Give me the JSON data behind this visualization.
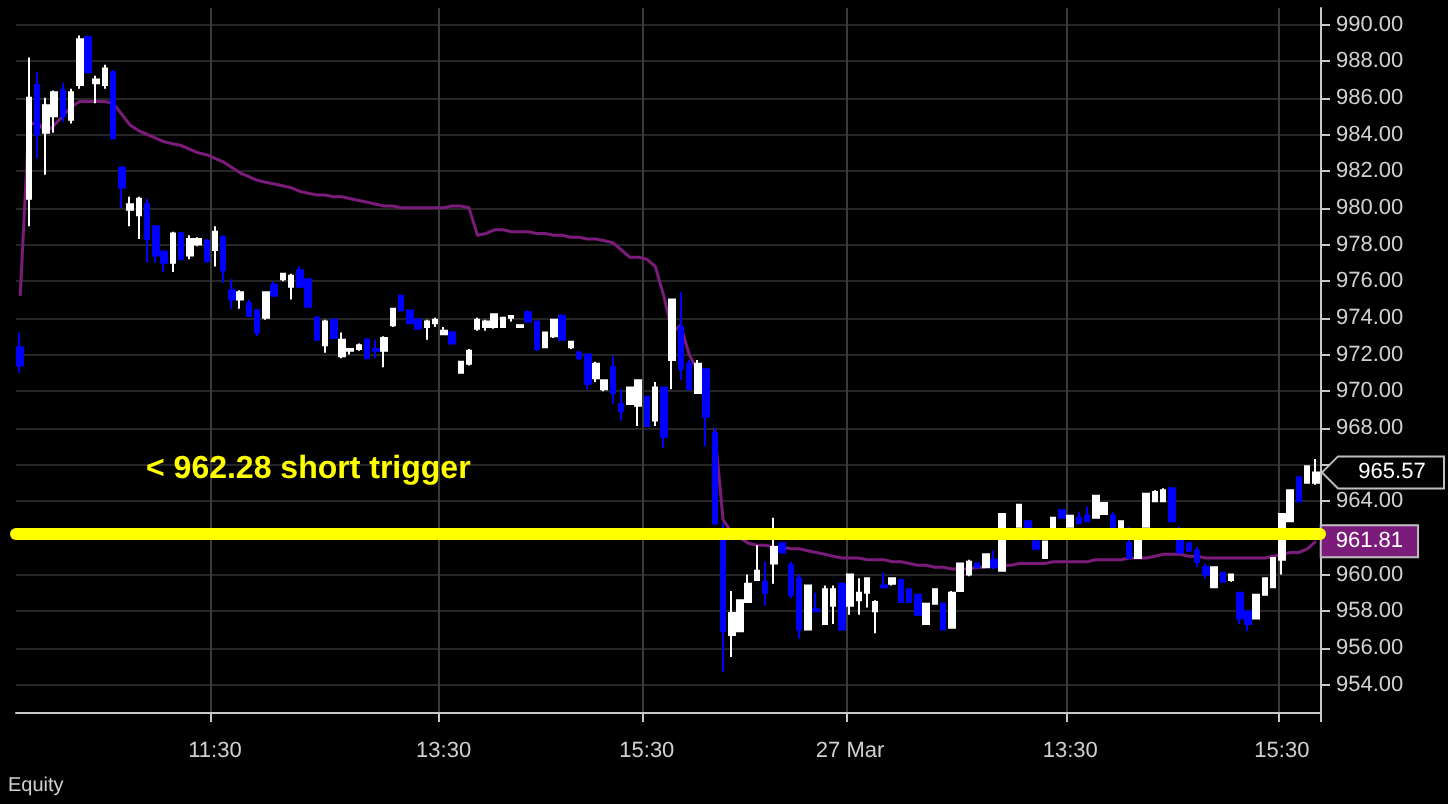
{
  "chart_data": {
    "type": "candlestick",
    "categories": [
      null,
      null,
      null,
      null,
      null,
      null,
      null,
      null,
      null,
      null,
      null,
      null,
      null,
      null,
      null,
      null,
      null,
      null,
      null,
      null,
      null,
      null,
      null,
      "11:30",
      null,
      null,
      null,
      null,
      null,
      null,
      null,
      null,
      null,
      null,
      null,
      null,
      null,
      null,
      null,
      null,
      null,
      null,
      null,
      null,
      null,
      null,
      null,
      null,
      null,
      null,
      "13:30",
      null,
      null,
      null,
      null,
      null,
      null,
      null,
      null,
      null,
      null,
      null,
      null,
      null,
      null,
      null,
      null,
      null,
      null,
      null,
      null,
      null,
      null,
      null,
      "15:30",
      null,
      null,
      null,
      null,
      null,
      null,
      null,
      null,
      null,
      null,
      null,
      null,
      null,
      null,
      null,
      null,
      null,
      null,
      null,
      null,
      null,
      null,
      null,
      "27 Mar",
      null,
      null,
      null,
      null,
      null,
      null,
      null,
      null,
      null,
      null,
      null,
      null,
      null,
      null,
      null,
      null,
      null,
      null,
      null,
      null,
      null,
      null,
      null,
      null,
      null,
      "13:30",
      null,
      null,
      null,
      null,
      null,
      null,
      null,
      null,
      null,
      null,
      null,
      null,
      null,
      null,
      null,
      null,
      null,
      null,
      null,
      null,
      null,
      null,
      null,
      null,
      "15:30",
      null,
      null,
      null,
      null
    ],
    "ohlc": [
      [
        972.4,
        973.2,
        971.0,
        971.4
      ],
      [
        980.5,
        988.2,
        979.0,
        986.0
      ],
      [
        986.7,
        987.4,
        982.7,
        984.0
      ],
      [
        984.1,
        986.0,
        981.8,
        985.6
      ],
      [
        985.0,
        986.4,
        984.1,
        986.3
      ],
      [
        986.4,
        986.8,
        984.7,
        985.0
      ],
      [
        984.8,
        986.5,
        984.6,
        986.3
      ],
      [
        986.7,
        989.4,
        986.5,
        989.2
      ],
      [
        989.3,
        989.4,
        987.4,
        987.4
      ],
      [
        986.8,
        987.2,
        985.7,
        987.0
      ],
      [
        986.7,
        987.8,
        986.5,
        987.6
      ],
      [
        987.4,
        987.5,
        983.8,
        983.8
      ],
      [
        982.2,
        982.2,
        980.0,
        981.1
      ],
      [
        979.9,
        980.6,
        979.0,
        980.2
      ],
      [
        979.6,
        980.6,
        978.3,
        980.5
      ],
      [
        980.2,
        980.5,
        977.0,
        978.3
      ],
      [
        979.0,
        979.0,
        977.0,
        977.4
      ],
      [
        977.6,
        977.7,
        976.5,
        977.0
      ],
      [
        977.0,
        978.7,
        976.5,
        978.6
      ],
      [
        978.6,
        978.7,
        977.2,
        977.2
      ],
      [
        977.4,
        978.5,
        977.2,
        978.3
      ],
      [
        978.0,
        978.4,
        977.9,
        978.3
      ],
      [
        978.2,
        978.3,
        977.0,
        977.1
      ],
      [
        977.7,
        979.0,
        976.8,
        978.7
      ],
      [
        978.4,
        978.5,
        975.9,
        976.6
      ],
      [
        975.5,
        976.1,
        974.5,
        975.0
      ],
      [
        975.0,
        975.5,
        974.5,
        975.4
      ],
      [
        974.8,
        975.0,
        974.1,
        974.1
      ],
      [
        974.4,
        974.5,
        973.0,
        973.2
      ],
      [
        974.0,
        975.4,
        973.9,
        975.4
      ],
      [
        975.8,
        976.0,
        975.2,
        975.2
      ],
      [
        976.1,
        976.4,
        976.0,
        976.4
      ],
      [
        975.7,
        976.4,
        975.0,
        976.3
      ],
      [
        976.6,
        976.8,
        975.7,
        975.7
      ],
      [
        976.1,
        976.1,
        974.6,
        974.6
      ],
      [
        974.0,
        974.1,
        972.8,
        972.8
      ],
      [
        972.5,
        973.9,
        972.1,
        973.8
      ],
      [
        973.9,
        973.9,
        972.9,
        972.9
      ],
      [
        971.9,
        973.2,
        971.8,
        972.8
      ],
      [
        972.2,
        972.3,
        972.0,
        972.3
      ],
      [
        972.3,
        972.6,
        972.2,
        972.5
      ],
      [
        972.8,
        972.9,
        971.8,
        971.8
      ],
      [
        972.3,
        972.8,
        971.8,
        972.2
      ],
      [
        972.2,
        973.0,
        971.3,
        972.9
      ],
      [
        973.6,
        974.5,
        973.5,
        974.5
      ],
      [
        975.2,
        975.2,
        974.4,
        974.4
      ],
      [
        974.4,
        974.4,
        973.7,
        973.7
      ],
      [
        973.9,
        974.0,
        973.4,
        973.4
      ],
      [
        973.5,
        973.9,
        972.8,
        973.8
      ],
      [
        973.7,
        974.0,
        973.5,
        973.9
      ],
      [
        973.1,
        973.5,
        973.1,
        973.3
      ],
      [
        973.2,
        973.3,
        972.6,
        972.6
      ],
      [
        971.0,
        971.6,
        971.0,
        971.6
      ],
      [
        971.5,
        972.3,
        971.4,
        972.2
      ],
      [
        973.4,
        974.0,
        973.3,
        973.9
      ],
      [
        973.5,
        973.9,
        973.3,
        973.8
      ],
      [
        973.5,
        974.2,
        973.4,
        974.2
      ],
      [
        973.5,
        974.0,
        973.5,
        974.0
      ],
      [
        974.0,
        974.1,
        973.8,
        974.1
      ],
      [
        973.5,
        973.6,
        973.5,
        973.6
      ],
      [
        974.3,
        974.4,
        973.8,
        973.8
      ],
      [
        973.8,
        973.8,
        972.2,
        972.3
      ],
      [
        972.4,
        973.2,
        972.4,
        973.2
      ],
      [
        973.0,
        973.9,
        972.9,
        973.9
      ],
      [
        974.1,
        974.2,
        972.8,
        972.8
      ],
      [
        972.4,
        972.7,
        972.3,
        972.7
      ],
      [
        972.1,
        972.2,
        971.7,
        971.8
      ],
      [
        972.0,
        972.0,
        970.1,
        970.4
      ],
      [
        970.7,
        971.6,
        970.5,
        971.5
      ],
      [
        970.1,
        970.6,
        970.0,
        970.6
      ],
      [
        971.3,
        971.9,
        969.3,
        969.9
      ],
      [
        969.3,
        970.1,
        968.4,
        968.9
      ],
      [
        969.3,
        970.2,
        969.3,
        970.2
      ],
      [
        969.2,
        970.6,
        968.1,
        970.6
      ],
      [
        969.7,
        969.7,
        968.1,
        968.1
      ],
      [
        968.4,
        970.5,
        968.1,
        970.2
      ],
      [
        970.2,
        970.2,
        966.9,
        967.5
      ],
      [
        971.7,
        975.0,
        970.1,
        975.0
      ],
      [
        973.5,
        975.4,
        970.6,
        971.2
      ],
      [
        971.5,
        971.7,
        970.1,
        970.1
      ],
      [
        969.9,
        971.7,
        969.9,
        971.5
      ],
      [
        971.2,
        971.2,
        967.0,
        968.6
      ],
      [
        967.7,
        968.0,
        962.7,
        962.8
      ],
      [
        962.2,
        962.8,
        954.7,
        956.9
      ],
      [
        956.7,
        959.1,
        955.5,
        957.9
      ],
      [
        956.9,
        958.6,
        956.9,
        958.6
      ],
      [
        958.5,
        960.0,
        958.5,
        959.5
      ],
      [
        959.7,
        961.6,
        959.7,
        960.2
      ],
      [
        959.6,
        960.7,
        958.3,
        959.0
      ],
      [
        960.6,
        963.1,
        959.5,
        961.5
      ],
      [
        961.7,
        961.7,
        961.2,
        961.2
      ],
      [
        960.5,
        960.7,
        958.7,
        958.9
      ],
      [
        959.8,
        960.0,
        956.5,
        957.0
      ],
      [
        957.0,
        959.4,
        957.0,
        959.4
      ],
      [
        958.1,
        959.0,
        958.0,
        958.0
      ],
      [
        957.3,
        959.4,
        957.3,
        959.2
      ],
      [
        958.3,
        959.4,
        957.3,
        959.2
      ],
      [
        959.5,
        959.5,
        957.0,
        957.0
      ],
      [
        958.3,
        960.0,
        957.8,
        960.0
      ],
      [
        958.6,
        959.8,
        957.8,
        959.0
      ],
      [
        959.0,
        959.8,
        958.2,
        959.8
      ],
      [
        958.0,
        958.6,
        956.8,
        958.5
      ],
      [
        959.4,
        960.1,
        959.3,
        959.3
      ],
      [
        959.5,
        959.8,
        959.4,
        959.8
      ],
      [
        959.7,
        959.7,
        958.5,
        958.5
      ],
      [
        959.2,
        959.2,
        958.5,
        958.5
      ],
      [
        958.9,
        958.9,
        957.8,
        957.8
      ],
      [
        957.3,
        958.4,
        957.3,
        958.4
      ],
      [
        958.4,
        959.2,
        958.4,
        959.2
      ],
      [
        958.4,
        958.4,
        957.0,
        957.0
      ],
      [
        957.1,
        959.1,
        957.1,
        959.0
      ],
      [
        959.1,
        960.6,
        959.1,
        960.6
      ],
      [
        960.0,
        960.8,
        959.9,
        960.7
      ],
      [
        960.6,
        960.6,
        960.4,
        960.4
      ],
      [
        960.4,
        961.1,
        960.4,
        961.1
      ],
      [
        960.8,
        961.3,
        960.3,
        960.4
      ],
      [
        960.2,
        963.3,
        960.2,
        963.3
      ],
      null,
      [
        962.6,
        963.8,
        962.6,
        963.8
      ],
      [
        962.9,
        962.9,
        962.4,
        962.4
      ],
      [
        961.8,
        961.9,
        961.4,
        961.4
      ],
      [
        960.9,
        961.8,
        960.9,
        961.8
      ],
      [
        962.4,
        963.1,
        962.4,
        963.1
      ],
      [
        963.5,
        963.5,
        963.1,
        963.1
      ],
      [
        962.6,
        963.2,
        962.6,
        963.2
      ],
      [
        963.1,
        963.4,
        962.8,
        962.8
      ],
      [
        963.2,
        963.7,
        962.9,
        962.9
      ],
      [
        963.1,
        964.3,
        963.1,
        964.3
      ],
      [
        963.3,
        963.9,
        963.3,
        963.9
      ],
      [
        963.2,
        963.4,
        962.6,
        962.6
      ],
      [
        962.4,
        962.9,
        962.4,
        962.9
      ],
      [
        961.7,
        962.6,
        960.9,
        960.9
      ],
      [
        960.9,
        962.2,
        960.9,
        962.2
      ],
      [
        962.6,
        964.4,
        962.6,
        964.4
      ],
      [
        964.0,
        964.6,
        964.0,
        964.5
      ],
      [
        964.0,
        964.7,
        964.0,
        964.6
      ],
      [
        964.7,
        964.7,
        962.9,
        962.9
      ],
      [
        962.0,
        962.6,
        961.2,
        961.2
      ],
      [
        961.7,
        961.7,
        961.3,
        961.3
      ],
      [
        961.3,
        961.5,
        960.4,
        960.7
      ],
      [
        960.4,
        960.6,
        959.8,
        960.0
      ],
      [
        959.3,
        960.4,
        959.3,
        960.4
      ],
      [
        960.1,
        960.1,
        959.6,
        959.6
      ],
      [
        959.7,
        960.0,
        959.6,
        960.0
      ],
      [
        959.0,
        959.0,
        957.3,
        957.6
      ],
      [
        958.0,
        958.0,
        956.9,
        957.3
      ],
      [
        957.6,
        958.9,
        957.6,
        958.9
      ],
      [
        958.9,
        959.8,
        958.9,
        959.8
      ],
      [
        959.3,
        960.9,
        959.3,
        960.9
      ],
      [
        960.8,
        963.3,
        960.0,
        963.3
      ],
      [
        962.9,
        964.6,
        962.9,
        964.6
      ],
      [
        965.3,
        965.3,
        964.0,
        964.0
      ],
      [
        965.0,
        965.9,
        965.0,
        965.9
      ],
      [
        965.0,
        966.3,
        964.9,
        965.57
      ]
    ],
    "colors": [
      "#0000ff",
      "#ffffff",
      "#0000ff",
      "#ffffff",
      "#ffffff",
      "#0000ff",
      "#ffffff",
      "#ffffff",
      "#0000ff",
      "#ffffff",
      "#ffffff",
      "#0000ff",
      "#0000ff",
      "#ffffff",
      "#ffffff",
      "#0000ff",
      "#0000ff",
      "#0000ff",
      "#ffffff",
      "#0000ff",
      "#ffffff",
      "#ffffff",
      "#0000ff",
      "#ffffff",
      "#0000ff",
      "#0000ff",
      "#ffffff",
      "#0000ff",
      "#0000ff",
      "#ffffff",
      "#0000ff",
      "#ffffff",
      "#ffffff",
      "#0000ff",
      "#0000ff",
      "#0000ff",
      "#ffffff",
      "#0000ff",
      "#ffffff",
      "#ffffff",
      "#ffffff",
      "#0000ff",
      "#0000ff",
      "#ffffff",
      "#ffffff",
      "#0000ff",
      "#0000ff",
      "#0000ff",
      "#ffffff",
      "#ffffff",
      "#ffffff",
      "#0000ff",
      "#ffffff",
      "#ffffff",
      "#ffffff",
      "#ffffff",
      "#ffffff",
      "#ffffff",
      "#ffffff",
      "#ffffff",
      "#0000ff",
      "#0000ff",
      "#ffffff",
      "#ffffff",
      "#0000ff",
      "#ffffff",
      "#0000ff",
      "#0000ff",
      "#ffffff",
      "#ffffff",
      "#0000ff",
      "#0000ff",
      "#ffffff",
      "#ffffff",
      "#0000ff",
      "#ffffff",
      "#0000ff",
      "#ffffff",
      "#0000ff",
      "#0000ff",
      "#ffffff",
      "#0000ff",
      "#0000ff",
      "#0000ff",
      "#ffffff",
      "#ffffff",
      "#ffffff",
      "#ffffff",
      "#0000ff",
      "#ffffff",
      "#0000ff",
      "#0000ff",
      "#0000ff",
      "#ffffff",
      "#0000ff",
      "#ffffff",
      "#ffffff",
      "#0000ff",
      "#ffffff",
      "#ffffff",
      "#ffffff",
      "#ffffff",
      "#0000ff",
      "#ffffff",
      "#0000ff",
      "#0000ff",
      "#0000ff",
      "#ffffff",
      "#ffffff",
      "#0000ff",
      "#ffffff",
      "#ffffff",
      "#ffffff",
      "#0000ff",
      "#ffffff",
      "#0000ff",
      "#ffffff",
      null,
      "#ffffff",
      "#0000ff",
      "#0000ff",
      "#ffffff",
      "#ffffff",
      "#0000ff",
      "#ffffff",
      "#0000ff",
      "#0000ff",
      "#ffffff",
      "#ffffff",
      "#0000ff",
      "#ffffff",
      "#0000ff",
      "#ffffff",
      "#ffffff",
      "#ffffff",
      "#ffffff",
      "#0000ff",
      "#0000ff",
      "#0000ff",
      "#0000ff",
      "#0000ff",
      "#ffffff",
      "#0000ff",
      "#ffffff",
      "#0000ff",
      "#0000ff",
      "#ffffff",
      "#ffffff",
      "#ffffff",
      "#ffffff",
      "#ffffff",
      "#0000ff",
      "#ffffff",
      "#ffffff"
    ],
    "series": [
      {
        "type": "line",
        "color": "#7b1c7b",
        "values": [
          975.2,
          984.5,
          984.7,
          984.1,
          984.5,
          985.0,
          985.5,
          985.8,
          985.8,
          985.8,
          985.8,
          985.7,
          985.1,
          984.5,
          984.2,
          984.0,
          983.8,
          983.6,
          983.5,
          983.4,
          983.2,
          983.0,
          982.9,
          982.7,
          982.5,
          982.2,
          981.9,
          981.7,
          981.5,
          981.4,
          981.3,
          981.2,
          981.1,
          980.9,
          980.8,
          980.7,
          980.7,
          980.6,
          980.6,
          980.5,
          980.4,
          980.3,
          980.2,
          980.1,
          980.1,
          980.0,
          980.0,
          980.0,
          980.0,
          980.0,
          980.0,
          980.1,
          980.1,
          980.0,
          978.5,
          978.6,
          978.8,
          978.8,
          978.7,
          978.7,
          978.7,
          978.6,
          978.6,
          978.5,
          978.5,
          978.4,
          978.4,
          978.3,
          978.3,
          978.2,
          978.1,
          977.7,
          977.3,
          977.3,
          977.2,
          976.8,
          975.2,
          973.2,
          973.6,
          972.0,
          971.1,
          null,
          968.0,
          963.0,
          962.3,
          962.0,
          961.7,
          961.6,
          961.6,
          961.5,
          961.5,
          961.4,
          961.4,
          961.3,
          961.2,
          961.1,
          961.0,
          960.9,
          960.9,
          960.9,
          960.8,
          960.8,
          960.8,
          960.7,
          960.7,
          960.6,
          960.5,
          960.5,
          960.4,
          960.4,
          960.3,
          960.3,
          960.3,
          960.4,
          960.4,
          null,
          960.5,
          960.5,
          960.6,
          960.6,
          960.6,
          960.6,
          960.7,
          960.7,
          960.7,
          960.7,
          960.7,
          960.8,
          960.8,
          960.8,
          960.8,
          960.9,
          960.9,
          960.9,
          961.0,
          961.1,
          961.1,
          961.1,
          961.0,
          961.0,
          960.9,
          960.9,
          960.9,
          960.9,
          960.9,
          960.9,
          960.9,
          960.9,
          961.0,
          961.1,
          961.2,
          961.2,
          961.4,
          961.81
        ],
        "value_labels": [
          null,
          null,
          null,
          null,
          null,
          null,
          null,
          null,
          null,
          null,
          null,
          null,
          null,
          null,
          null,
          null,
          null,
          null,
          null,
          null,
          null,
          null,
          null,
          null,
          null,
          null,
          null,
          null,
          null,
          null,
          null,
          null,
          null,
          null,
          null,
          null,
          null,
          null,
          null,
          null,
          null,
          null,
          null,
          null,
          null,
          null,
          null,
          null,
          null,
          null,
          null,
          null,
          null,
          null,
          null,
          null,
          null,
          null,
          null,
          null,
          null,
          null,
          null,
          null,
          null,
          null,
          null,
          null,
          null,
          null,
          null,
          null,
          null,
          null,
          null,
          null,
          null,
          null,
          null,
          null,
          null,
          null,
          null,
          null,
          null,
          null,
          null,
          null,
          null,
          null,
          null,
          null,
          null,
          null,
          null,
          null,
          null,
          null,
          null,
          null,
          null,
          null,
          null,
          null,
          null,
          null,
          null,
          null,
          null,
          null,
          null,
          null,
          null,
          null,
          null,
          null,
          null,
          null,
          null,
          null,
          null,
          null,
          null,
          null,
          null,
          null,
          null,
          null,
          null,
          null,
          null,
          null,
          null,
          null,
          null,
          null,
          null,
          null,
          null,
          null,
          null,
          null,
          null,
          null,
          null,
          null,
          null,
          null,
          null,
          null,
          null,
          null,
          null,
          "961.81"
        ]
      }
    ],
    "ylim": [
      952.5,
      990.9
    ],
    "yticks": [
      {
        "value": 954,
        "label": "954.00"
      },
      {
        "value": 956,
        "label": "956.00"
      },
      {
        "value": 958,
        "label": "958.00"
      },
      {
        "value": 960,
        "label": "960.00"
      },
      {
        "value": 962,
        "label": null
      },
      {
        "value": 964,
        "label": "964.00"
      },
      {
        "value": 966,
        "label": null
      },
      {
        "value": 968,
        "label": "968.00"
      },
      {
        "value": 970,
        "label": "970.00"
      },
      {
        "value": 972,
        "label": "972.00"
      },
      {
        "value": 974,
        "label": "974.00"
      },
      {
        "value": 976,
        "label": "976.00"
      },
      {
        "value": 978,
        "label": "978.00"
      },
      {
        "value": 980,
        "label": "980.00"
      },
      {
        "value": 982,
        "label": "982.00"
      },
      {
        "value": 984,
        "label": "984.00"
      },
      {
        "value": 986,
        "label": "986.00"
      },
      {
        "value": 988,
        "label": "988.00"
      },
      {
        "value": 990,
        "label": "990.00"
      }
    ],
    "ref_lines": [
      {
        "axis": "y",
        "value": 962.28,
        "label": "< 962.28 short trigger",
        "color": "#ffff00"
      }
    ],
    "annotations": [
      "Equity"
    ],
    "value_labels": [
      null,
      null,
      null,
      null,
      null,
      null,
      null,
      null,
      null,
      null,
      null,
      null,
      null,
      null,
      null,
      null,
      null,
      null,
      null,
      null,
      null,
      null,
      null,
      null,
      null,
      null,
      null,
      null,
      null,
      null,
      null,
      null,
      null,
      null,
      null,
      null,
      null,
      null,
      null,
      null,
      null,
      null,
      null,
      null,
      null,
      null,
      null,
      null,
      null,
      null,
      null,
      null,
      null,
      null,
      null,
      null,
      null,
      null,
      null,
      null,
      null,
      null,
      null,
      null,
      null,
      null,
      null,
      null,
      null,
      null,
      null,
      null,
      null,
      null,
      null,
      null,
      null,
      null,
      null,
      null,
      null,
      null,
      null,
      null,
      null,
      null,
      null,
      null,
      null,
      null,
      null,
      null,
      null,
      null,
      null,
      null,
      null,
      null,
      null,
      null,
      null,
      null,
      null,
      null,
      null,
      null,
      null,
      null,
      null,
      null,
      null,
      null,
      null,
      null,
      null,
      null,
      null,
      null,
      null,
      null,
      null,
      null,
      null,
      null,
      null,
      null,
      null,
      null,
      null,
      null,
      null,
      null,
      null,
      null,
      null,
      null,
      null,
      null,
      null,
      null,
      null,
      null,
      null,
      null,
      null,
      null,
      null,
      null,
      null,
      null,
      null,
      null,
      null,
      "965.57"
    ],
    "grid": true
  }
}
